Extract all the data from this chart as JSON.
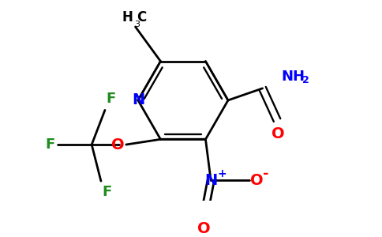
{
  "background_color": "#ffffff",
  "fig_width": 4.84,
  "fig_height": 3.0,
  "dpi": 100,
  "bond_color": "#000000",
  "bond_width": 2.0,
  "colors": {
    "N": "#0000ff",
    "O": "#ff0000",
    "F": "#228b22",
    "C": "#000000"
  }
}
